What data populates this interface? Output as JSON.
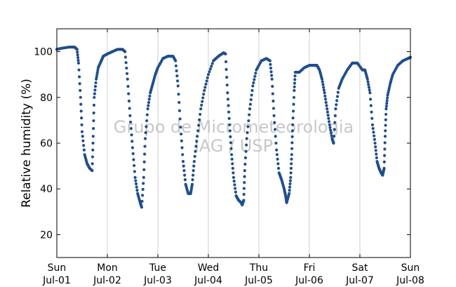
{
  "chart_data": {
    "type": "scatter",
    "title": "",
    "xlabel": "",
    "ylabel": "Relative humidity (%)",
    "ylim": [
      10,
      110
    ],
    "yticks": [
      20,
      40,
      60,
      80,
      100
    ],
    "xlim_days": [
      0,
      7
    ],
    "xticks": [
      {
        "day": "Sun",
        "date": "Jul-01"
      },
      {
        "day": "Mon",
        "date": "Jul-02"
      },
      {
        "day": "Tue",
        "date": "Jul-03"
      },
      {
        "day": "Wed",
        "date": "Jul-04"
      },
      {
        "day": "Thu",
        "date": "Jul-05"
      },
      {
        "day": "Fri",
        "date": "Jul-06"
      },
      {
        "day": "Sat",
        "date": "Jul-07"
      },
      {
        "day": "Sun",
        "date": "Jul-08"
      }
    ],
    "grid": "vertical",
    "marker_color": "#1f4e8c",
    "watermark": [
      "Grupo de Micrometeorologia",
      "IAG / USP"
    ],
    "series": [
      {
        "name": "",
        "points": [
          [
            0.0,
            101
          ],
          [
            0.1,
            101.5
          ],
          [
            0.25,
            102
          ],
          [
            0.35,
            102
          ],
          [
            0.4,
            101
          ],
          [
            0.43,
            95
          ],
          [
            0.47,
            80
          ],
          [
            0.5,
            65
          ],
          [
            0.55,
            55
          ],
          [
            0.6,
            51
          ],
          [
            0.65,
            49
          ],
          [
            0.7,
            48
          ],
          [
            0.72,
            63
          ],
          [
            0.74,
            80
          ],
          [
            0.78,
            88
          ],
          [
            0.82,
            93
          ],
          [
            0.88,
            96
          ],
          [
            0.92,
            98
          ],
          [
            1.0,
            99
          ],
          [
            1.1,
            100
          ],
          [
            1.2,
            101
          ],
          [
            1.3,
            101
          ],
          [
            1.35,
            100
          ],
          [
            1.4,
            88
          ],
          [
            1.45,
            72
          ],
          [
            1.5,
            58
          ],
          [
            1.55,
            45
          ],
          [
            1.6,
            38
          ],
          [
            1.65,
            34
          ],
          [
            1.68,
            32
          ],
          [
            1.72,
            45
          ],
          [
            1.75,
            62
          ],
          [
            1.8,
            75
          ],
          [
            1.85,
            82
          ],
          [
            1.9,
            86
          ],
          [
            1.95,
            90
          ],
          [
            2.0,
            93
          ],
          [
            2.1,
            97
          ],
          [
            2.2,
            98
          ],
          [
            2.3,
            98
          ],
          [
            2.35,
            96
          ],
          [
            2.4,
            85
          ],
          [
            2.45,
            67
          ],
          [
            2.5,
            52
          ],
          [
            2.55,
            42
          ],
          [
            2.6,
            38
          ],
          [
            2.65,
            38
          ],
          [
            2.68,
            42
          ],
          [
            2.72,
            52
          ],
          [
            2.78,
            63
          ],
          [
            2.85,
            75
          ],
          [
            2.92,
            83
          ],
          [
            3.0,
            90
          ],
          [
            3.1,
            96
          ],
          [
            3.2,
            98
          ],
          [
            3.3,
            99.5
          ],
          [
            3.34,
            99
          ],
          [
            3.38,
            82
          ],
          [
            3.42,
            68
          ],
          [
            3.46,
            55
          ],
          [
            3.5,
            45
          ],
          [
            3.55,
            37
          ],
          [
            3.6,
            35
          ],
          [
            3.65,
            34
          ],
          [
            3.67,
            33
          ],
          [
            3.7,
            35
          ],
          [
            3.72,
            48
          ],
          [
            3.76,
            62
          ],
          [
            3.82,
            75
          ],
          [
            3.88,
            85
          ],
          [
            3.95,
            92
          ],
          [
            4.05,
            96
          ],
          [
            4.15,
            97
          ],
          [
            4.22,
            96
          ],
          [
            4.26,
            88
          ],
          [
            4.3,
            72
          ],
          [
            4.35,
            57
          ],
          [
            4.4,
            47
          ],
          [
            4.45,
            44
          ],
          [
            4.5,
            40
          ],
          [
            4.53,
            37
          ],
          [
            4.55,
            34
          ],
          [
            4.6,
            38
          ],
          [
            4.63,
            45
          ],
          [
            4.65,
            55
          ],
          [
            4.67,
            68
          ],
          [
            4.7,
            83
          ],
          [
            4.72,
            91
          ],
          [
            4.8,
            91
          ],
          [
            4.9,
            93
          ],
          [
            5.0,
            94
          ],
          [
            5.1,
            94
          ],
          [
            5.15,
            94
          ],
          [
            5.2,
            92
          ],
          [
            5.25,
            88
          ],
          [
            5.3,
            82
          ],
          [
            5.35,
            75
          ],
          [
            5.4,
            68
          ],
          [
            5.45,
            62
          ],
          [
            5.48,
            60
          ],
          [
            5.52,
            75
          ],
          [
            5.58,
            84
          ],
          [
            5.65,
            88
          ],
          [
            5.75,
            92
          ],
          [
            5.85,
            95
          ],
          [
            5.95,
            95
          ],
          [
            6.05,
            92
          ],
          [
            6.1,
            92
          ],
          [
            6.15,
            88
          ],
          [
            6.2,
            82
          ],
          [
            6.25,
            68
          ],
          [
            6.3,
            60
          ],
          [
            6.34,
            52
          ],
          [
            6.38,
            49
          ],
          [
            6.42,
            47
          ],
          [
            6.45,
            46
          ],
          [
            6.48,
            49
          ],
          [
            6.5,
            63
          ],
          [
            6.52,
            75
          ],
          [
            6.55,
            81
          ],
          [
            6.6,
            86
          ],
          [
            6.65,
            90
          ],
          [
            6.75,
            94
          ],
          [
            6.85,
            96
          ],
          [
            6.95,
            97
          ],
          [
            7.0,
            97.5
          ]
        ]
      }
    ]
  }
}
